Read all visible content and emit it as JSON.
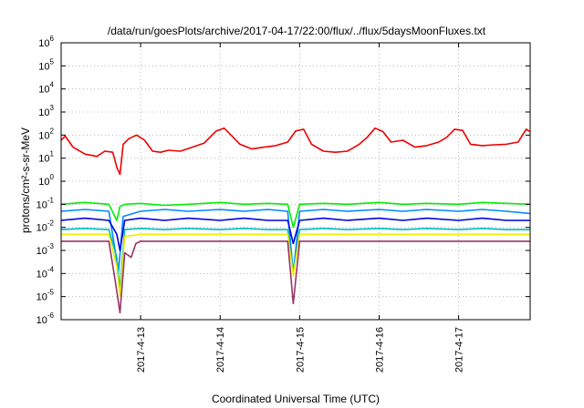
{
  "chart_data": {
    "type": "line",
    "title": "/data/run/goesPlots/archive/2017-04-17/22:00/flux/../flux/5daysMoonFluxes.txt",
    "xlabel": "Coordinated Universal Time (UTC)",
    "ylabel": "protons/cm²-s-sr-MeV",
    "yscale": "log",
    "ylim": [
      1e-06,
      1000000.0
    ],
    "xlim": [
      0,
      5.9
    ],
    "grid": true,
    "y_ticks": [
      {
        "base": "10",
        "exp": "-6"
      },
      {
        "base": "10",
        "exp": "-5"
      },
      {
        "base": "10",
        "exp": "-4"
      },
      {
        "base": "10",
        "exp": "-3"
      },
      {
        "base": "10",
        "exp": "-2"
      },
      {
        "base": "10",
        "exp": "-1"
      },
      {
        "base": "10",
        "exp": "0"
      },
      {
        "base": "10",
        "exp": "1"
      },
      {
        "base": "10",
        "exp": "2"
      },
      {
        "base": "10",
        "exp": "3"
      },
      {
        "base": "10",
        "exp": "4"
      },
      {
        "base": "10",
        "exp": "5"
      },
      {
        "base": "10",
        "exp": "6"
      }
    ],
    "x_ticks": [
      {
        "label": "2017-4-13",
        "value": 1
      },
      {
        "label": "2017-4-14",
        "value": 2
      },
      {
        "label": "2017-4-15",
        "value": 3
      },
      {
        "label": "2017-4-16",
        "value": 4
      },
      {
        "label": "2017-4-17",
        "value": 5
      }
    ],
    "series": [
      {
        "color": "#ee0000",
        "x": [
          0,
          0.05,
          0.15,
          0.3,
          0.45,
          0.55,
          0.65,
          0.7,
          0.74,
          0.78,
          0.85,
          0.95,
          1.05,
          1.15,
          1.25,
          1.35,
          1.5,
          1.65,
          1.8,
          1.95,
          2.05,
          2.15,
          2.25,
          2.4,
          2.55,
          2.7,
          2.85,
          2.95,
          3.05,
          3.15,
          3.3,
          3.45,
          3.6,
          3.75,
          3.85,
          3.95,
          4.05,
          4.15,
          4.3,
          4.45,
          4.6,
          4.75,
          4.85,
          4.95,
          5.05,
          5.15,
          5.3,
          5.45,
          5.6,
          5.75,
          5.85,
          5.9
        ],
        "values": [
          60,
          90,
          30,
          15,
          12,
          20,
          18,
          4,
          2,
          40,
          70,
          100,
          60,
          20,
          18,
          22,
          20,
          30,
          45,
          150,
          200,
          90,
          40,
          25,
          30,
          35,
          50,
          150,
          180,
          40,
          20,
          18,
          20,
          40,
          80,
          200,
          140,
          50,
          60,
          30,
          35,
          50,
          80,
          180,
          160,
          40,
          35,
          38,
          40,
          50,
          180,
          140
        ]
      },
      {
        "color": "#00ee00",
        "x": [
          0,
          0.3,
          0.6,
          0.7,
          0.74,
          0.8,
          1.0,
          1.3,
          1.6,
          2.0,
          2.3,
          2.6,
          2.85,
          2.92,
          3.0,
          3.3,
          3.6,
          4.0,
          4.3,
          4.6,
          5.0,
          5.3,
          5.6,
          5.9
        ],
        "values": [
          0.1,
          0.12,
          0.1,
          0.02,
          0.08,
          0.1,
          0.11,
          0.09,
          0.1,
          0.12,
          0.1,
          0.11,
          0.1,
          0.01,
          0.1,
          0.11,
          0.1,
          0.12,
          0.1,
          0.11,
          0.1,
          0.12,
          0.11,
          0.1
        ]
      },
      {
        "color": "#0088ff",
        "x": [
          0,
          0.3,
          0.6,
          0.68,
          0.72,
          0.78,
          1.0,
          1.3,
          1.6,
          2.0,
          2.3,
          2.6,
          2.85,
          2.92,
          3.0,
          3.3,
          3.6,
          4.0,
          4.3,
          4.6,
          5.0,
          5.3,
          5.6,
          5.9
        ],
        "values": [
          0.05,
          0.06,
          0.05,
          0.001,
          0.0001,
          0.03,
          0.05,
          0.06,
          0.05,
          0.06,
          0.05,
          0.06,
          0.05,
          0.0001,
          0.05,
          0.06,
          0.05,
          0.06,
          0.05,
          0.06,
          0.05,
          0.06,
          0.05,
          0.04
        ]
      },
      {
        "color": "#0000dd",
        "x": [
          0,
          0.3,
          0.6,
          0.7,
          0.74,
          0.8,
          1.0,
          1.3,
          1.6,
          2.0,
          2.3,
          2.6,
          2.85,
          2.92,
          3.0,
          3.3,
          3.6,
          4.0,
          4.3,
          4.6,
          5.0,
          5.3,
          5.6,
          5.9
        ],
        "values": [
          0.02,
          0.025,
          0.02,
          0.005,
          0.001,
          0.02,
          0.025,
          0.02,
          0.025,
          0.02,
          0.025,
          0.02,
          0.02,
          0.002,
          0.02,
          0.025,
          0.02,
          0.025,
          0.02,
          0.025,
          0.02,
          0.025,
          0.02,
          0.02
        ]
      },
      {
        "color": "#00bbbb",
        "x": [
          0,
          0.3,
          0.6,
          0.7,
          0.74,
          0.8,
          1.0,
          1.3,
          1.6,
          2.0,
          2.3,
          2.6,
          2.85,
          2.92,
          3.0,
          3.3,
          3.6,
          4.0,
          4.3,
          4.6,
          5.0,
          5.3,
          5.6,
          5.9
        ],
        "values": [
          0.008,
          0.009,
          0.008,
          0.0005,
          2e-05,
          0.008,
          0.009,
          0.008,
          0.009,
          0.008,
          0.009,
          0.008,
          0.008,
          0.0001,
          0.008,
          0.009,
          0.008,
          0.009,
          0.008,
          0.009,
          0.008,
          0.009,
          0.008,
          0.008
        ]
      },
      {
        "color": "#eeee00",
        "x": [
          0,
          0.3,
          0.6,
          0.7,
          0.74,
          0.8,
          1.0,
          1.3,
          1.6,
          2.0,
          2.3,
          2.6,
          2.85,
          2.92,
          3.0,
          3.3,
          3.6,
          4.0,
          4.3,
          4.6,
          5.0,
          5.3,
          5.6,
          5.9
        ],
        "values": [
          0.005,
          0.005,
          0.005,
          0.0002,
          1e-05,
          0.004,
          0.005,
          0.005,
          0.005,
          0.005,
          0.005,
          0.005,
          0.005,
          8e-05,
          0.005,
          0.005,
          0.005,
          0.005,
          0.005,
          0.005,
          0.005,
          0.005,
          0.005,
          0.005
        ]
      },
      {
        "color": "#993366",
        "x": [
          0,
          0.3,
          0.6,
          0.68,
          0.74,
          0.8,
          0.88,
          0.94,
          1.0,
          1.3,
          1.6,
          2.0,
          2.3,
          2.6,
          2.85,
          2.92,
          3.0,
          3.3,
          3.6,
          4.0,
          4.3,
          4.6,
          5.0,
          5.3,
          5.6,
          5.9
        ],
        "values": [
          0.0025,
          0.0025,
          0.0025,
          5e-05,
          2e-06,
          0.0008,
          0.0005,
          0.002,
          0.0025,
          0.0025,
          0.0025,
          0.0025,
          0.0025,
          0.0025,
          0.0025,
          5e-06,
          0.0025,
          0.0025,
          0.0025,
          0.0025,
          0.0025,
          0.0025,
          0.0025,
          0.0025,
          0.0025,
          0.0025
        ]
      }
    ]
  }
}
